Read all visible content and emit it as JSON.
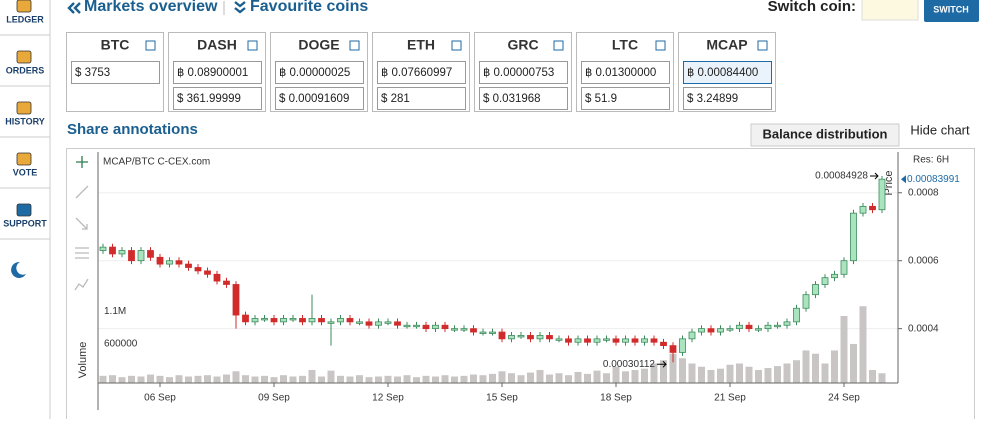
{
  "sidebar": [
    "LEDGER",
    "ORDERS",
    "HISTORY",
    "VOTE",
    "SUPPORT"
  ],
  "nav": {
    "markets": "Markets overview",
    "favourites": "Favourite coins",
    "switch_label": "Switch coin:",
    "switch_button": "SWITCH"
  },
  "coins": [
    {
      "name": "BTC",
      "rows": [
        "$ 3753"
      ]
    },
    {
      "name": "DASH",
      "rows": [
        "฿ 0.08900001",
        "$ 361.99999"
      ]
    },
    {
      "name": "DOGE",
      "rows": [
        "฿ 0.00000025",
        "$ 0.00091609"
      ]
    },
    {
      "name": "ETH",
      "rows": [
        "฿ 0.07660997",
        "$ 281"
      ]
    },
    {
      "name": "GRC",
      "rows": [
        "฿ 0.00000753",
        "$ 0.031968"
      ]
    },
    {
      "name": "LTC",
      "rows": [
        "฿ 0.01300000",
        "$ 51.9"
      ]
    },
    {
      "name": "MCAP",
      "rows": [
        "฿ 0.00084400",
        "$ 3.24899"
      ]
    }
  ],
  "section": {
    "title": "Share annotations",
    "tab_active": "Balance distribution",
    "tab_other": "Hide chart"
  },
  "chart_data": {
    "type": "candlestick",
    "title": "MCAP/BTC C-CEX.com",
    "resolution": "Res: 6H",
    "y_label": "Price",
    "categories": [
      null,
      null,
      null,
      null,
      null,
      null,
      "06 Sep",
      null,
      null,
      null,
      null,
      null,
      null,
      null,
      null,
      null,
      null,
      null,
      "09 Sep",
      null,
      null,
      null,
      null,
      null,
      null,
      null,
      null,
      null,
      null,
      null,
      "12 Sep",
      null,
      null,
      null,
      null,
      null,
      null,
      null,
      null,
      null,
      null,
      null,
      "15 Sep",
      null,
      null,
      null,
      null,
      null,
      null,
      null,
      null,
      null,
      null,
      null,
      "18 Sep",
      null,
      null,
      null,
      null,
      null,
      null,
      null,
      null,
      null,
      null,
      null,
      "21 Sep",
      null,
      null,
      null,
      null,
      null,
      null,
      null,
      null,
      null,
      null,
      null,
      "24 Sep",
      null,
      null,
      null,
      null
    ],
    "open": [
      0.00063,
      0.00064,
      0.00062,
      0.00063,
      0.0006,
      0.00063,
      0.00061,
      0.00059,
      0.0006,
      0.00059,
      0.00058,
      0.00057,
      0.00056,
      0.00054,
      0.00053,
      0.00044,
      0.00042,
      0.00043,
      0.00043,
      0.00042,
      0.00043,
      0.00043,
      0.00042,
      0.00043,
      0.00042,
      0.00042,
      0.00043,
      0.00042,
      0.00042,
      0.00041,
      0.00042,
      0.00042,
      0.00041,
      0.00041,
      0.00041,
      0.0004,
      0.00041,
      0.0004,
      0.0004,
      0.0004,
      0.00039,
      0.00039,
      0.00039,
      0.00037,
      0.00038,
      0.00038,
      0.00037,
      0.00038,
      0.00037,
      0.00037,
      0.00036,
      0.00037,
      0.00036,
      0.00037,
      0.00037,
      0.00036,
      0.00037,
      0.00036,
      0.00037,
      0.00036,
      0.00035,
      0.00033,
      0.00037,
      0.00039,
      0.0004,
      0.00039,
      0.0004,
      0.0004,
      0.00041,
      0.0004,
      0.0004,
      0.00041,
      0.00041,
      0.00042,
      0.00046,
      0.0005,
      0.00053,
      0.00055,
      0.00056,
      0.0006,
      0.00074,
      0.00076,
      0.00075
    ],
    "high": [
      0.00065,
      0.00065,
      0.00064,
      0.00064,
      0.00064,
      0.00064,
      0.00062,
      0.00061,
      0.00061,
      0.0006,
      0.00059,
      0.00058,
      0.00057,
      0.00055,
      0.00054,
      0.00045,
      0.00044,
      0.00044,
      0.00044,
      0.00044,
      0.00044,
      0.00044,
      0.0005,
      0.00044,
      0.00043,
      0.00044,
      0.00044,
      0.00043,
      0.00043,
      0.00043,
      0.00043,
      0.00043,
      0.00042,
      0.00042,
      0.00042,
      0.00042,
      0.00042,
      0.00041,
      0.00041,
      0.00041,
      0.0004,
      0.0004,
      0.0004,
      0.00039,
      0.00039,
      0.00039,
      0.00039,
      0.00039,
      0.00038,
      0.00038,
      0.00038,
      0.00038,
      0.00038,
      0.00038,
      0.00038,
      0.00038,
      0.00038,
      0.00038,
      0.00038,
      0.00037,
      0.00036,
      0.00038,
      0.0004,
      0.00041,
      0.00041,
      0.00041,
      0.00041,
      0.00042,
      0.00042,
      0.00041,
      0.00042,
      0.00042,
      0.00043,
      0.00047,
      0.00051,
      0.00054,
      0.00056,
      0.00057,
      0.00061,
      0.00075,
      0.00077,
      0.00077,
      0.00084928
    ],
    "low": [
      0.00062,
      0.00061,
      0.00061,
      0.00059,
      0.00059,
      0.0006,
      0.00058,
      0.00058,
      0.00058,
      0.00057,
      0.00056,
      0.00055,
      0.00053,
      0.00052,
      0.0004,
      0.00041,
      0.00041,
      0.00042,
      0.00041,
      0.00041,
      0.00042,
      0.00041,
      0.00041,
      0.00041,
      0.00035,
      0.00041,
      0.00041,
      0.00041,
      0.0004,
      0.0004,
      0.00041,
      0.0004,
      0.0004,
      0.0004,
      0.00039,
      0.00039,
      0.00039,
      0.00039,
      0.00039,
      0.00038,
      0.00038,
      0.00038,
      0.00036,
      0.00036,
      0.00037,
      0.00036,
      0.00036,
      0.00036,
      0.00036,
      0.00035,
      0.00035,
      0.00035,
      0.00035,
      0.00036,
      0.00035,
      0.00035,
      0.00035,
      0.00035,
      0.00035,
      0.00034,
      0.00030112,
      0.00032,
      0.00036,
      0.00038,
      0.00038,
      0.00038,
      0.00039,
      0.00039,
      0.00039,
      0.00039,
      0.00039,
      0.0004,
      0.0004,
      0.00041,
      0.00045,
      0.00049,
      0.00052,
      0.00054,
      0.00055,
      0.00059,
      0.00073,
      0.00074,
      0.00074
    ],
    "close": [
      0.00064,
      0.00062,
      0.00063,
      0.0006,
      0.00063,
      0.00061,
      0.00059,
      0.0006,
      0.00059,
      0.00058,
      0.00057,
      0.00056,
      0.00054,
      0.00053,
      0.00044,
      0.00042,
      0.00043,
      0.00043,
      0.00042,
      0.00043,
      0.00043,
      0.00042,
      0.00043,
      0.00042,
      0.00042,
      0.00043,
      0.00042,
      0.00042,
      0.00041,
      0.00042,
      0.00042,
      0.00041,
      0.00041,
      0.00041,
      0.0004,
      0.00041,
      0.0004,
      0.0004,
      0.0004,
      0.00039,
      0.00039,
      0.00039,
      0.00037,
      0.00038,
      0.00038,
      0.00037,
      0.00038,
      0.00037,
      0.00037,
      0.00036,
      0.00037,
      0.00036,
      0.00037,
      0.00037,
      0.00036,
      0.00037,
      0.00036,
      0.00037,
      0.00036,
      0.00035,
      0.00033,
      0.00037,
      0.00039,
      0.0004,
      0.00039,
      0.0004,
      0.0004,
      0.00041,
      0.0004,
      0.0004,
      0.00041,
      0.00041,
      0.00042,
      0.00046,
      0.0005,
      0.00053,
      0.00055,
      0.00056,
      0.0006,
      0.00074,
      0.00076,
      0.00075,
      0.00083991
    ],
    "up_color": "#a9e4bf",
    "up_border": "#3d8b5c",
    "down_color": "#d12b2b",
    "ylim": [
      0.00024,
      0.00092
    ],
    "yticks": [
      0.0004,
      0.0006,
      0.0008
    ],
    "grid": true,
    "y2lim": [
      0,
      3550000
    ],
    "y2ticks": [
      600000,
      {
        "value": 1100000,
        "label": "1.1M"
      }
    ],
    "series": [
      {
        "name": "Volume",
        "axis": "y2",
        "color": "#c9c5c5",
        "values": [
          110000,
          120000,
          90000,
          110000,
          100000,
          130000,
          110000,
          90000,
          120000,
          100000,
          110000,
          120000,
          100000,
          130000,
          180000,
          120000,
          100000,
          110000,
          90000,
          120000,
          100000,
          110000,
          200000,
          100000,
          190000,
          110000,
          100000,
          120000,
          90000,
          100000,
          110000,
          100000,
          120000,
          90000,
          110000,
          100000,
          120000,
          100000,
          110000,
          130000,
          120000,
          140000,
          180000,
          150000,
          120000,
          160000,
          200000,
          130000,
          150000,
          120000,
          170000,
          140000,
          190000,
          150000,
          250000,
          180000,
          200000,
          220000,
          300000,
          350000,
          450000,
          380000,
          300000,
          250000,
          200000,
          220000,
          280000,
          300000,
          250000,
          200000,
          230000,
          260000,
          300000,
          350000,
          500000,
          450000,
          300000,
          500000,
          1030000,
          600000,
          1180000,
          200000,
          150000
        ]
      }
    ]
  }
}
